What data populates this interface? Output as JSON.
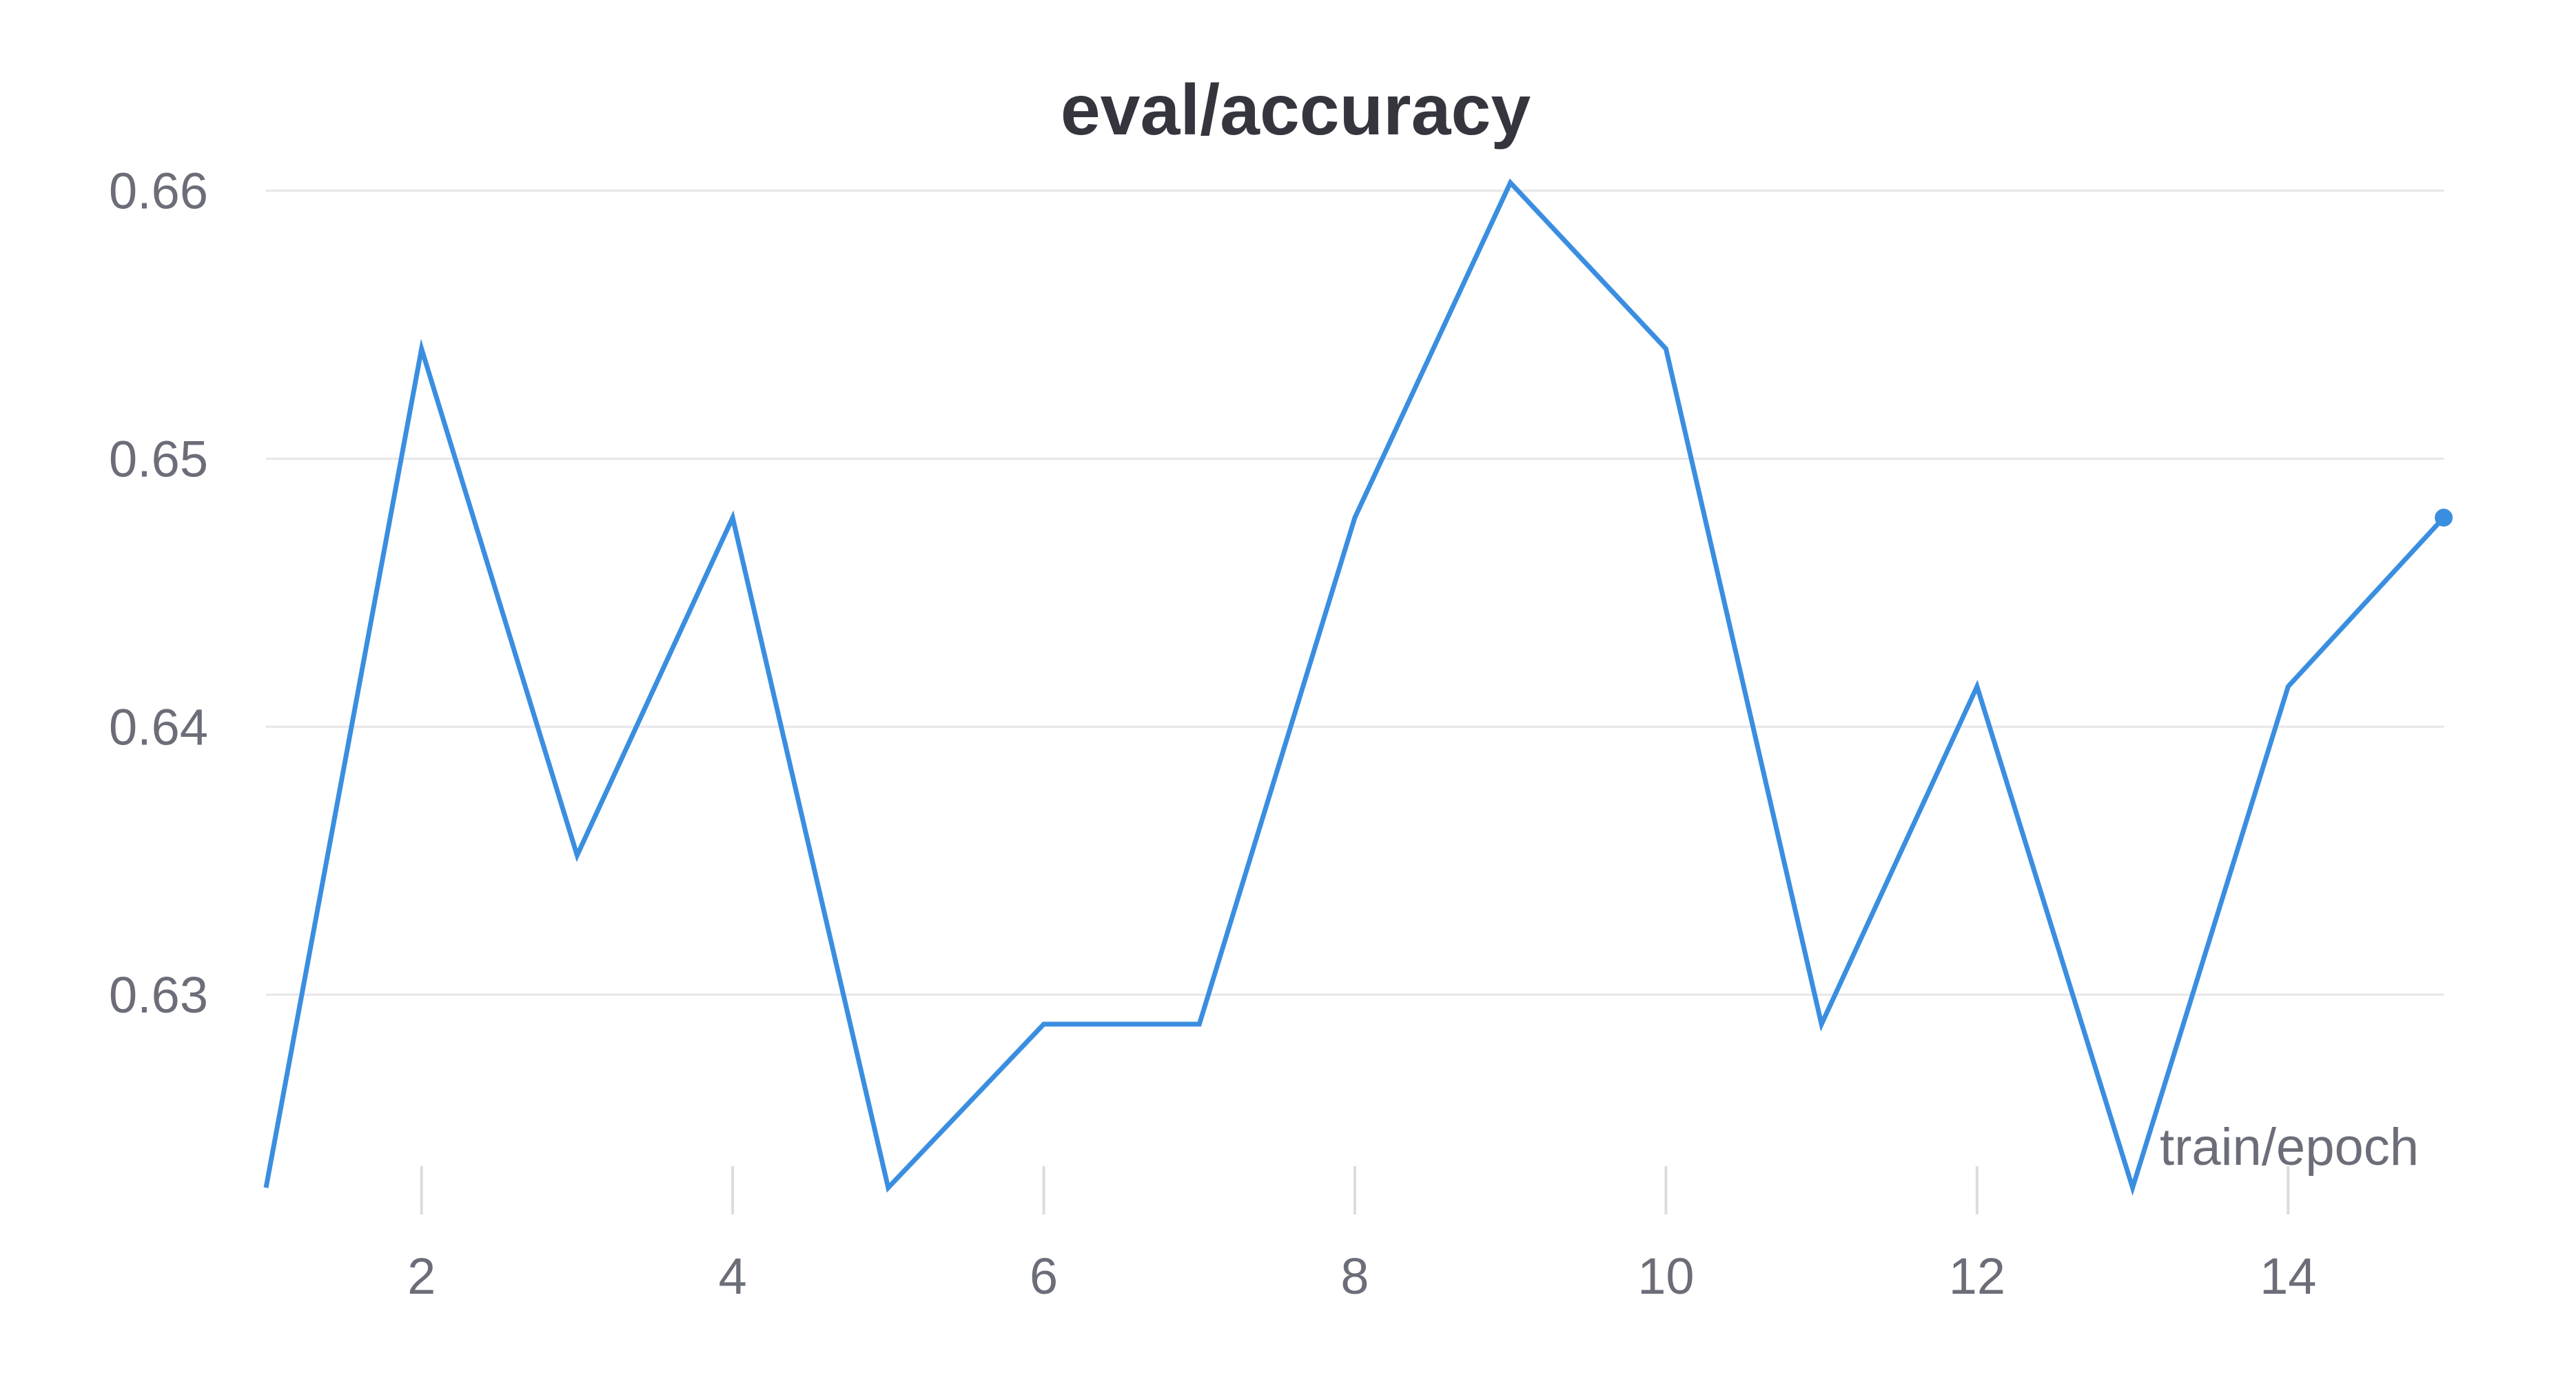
{
  "chart_data": {
    "type": "line",
    "title": "eval/accuracy",
    "xlabel": "train/epoch",
    "ylabel": "",
    "xlim": [
      1,
      15
    ],
    "ylim": [
      0.6227,
      0.6603
    ],
    "x_ticks": [
      2,
      4,
      6,
      8,
      10,
      12,
      14
    ],
    "y_ticks": [
      0.63,
      0.64,
      0.65,
      0.66
    ],
    "y_tick_labels": [
      "0.63",
      "0.64",
      "0.65",
      "0.66"
    ],
    "grid": "horizontal",
    "legend": "none",
    "series": [
      {
        "color": "#3a8ee0",
        "x": [
          1,
          2,
          3,
          4,
          5,
          6,
          7,
          8,
          9,
          10,
          11,
          12,
          13,
          14,
          15
        ],
        "values": [
          0.6228,
          0.6541,
          0.6352,
          0.6478,
          0.6228,
          0.6289,
          0.6289,
          0.6478,
          0.6603,
          0.6541,
          0.6289,
          0.6415,
          0.6228,
          0.6415,
          0.6478
        ]
      }
    ],
    "colors": {
      "line": "#3a8ee0",
      "grid": "#e6e6e9",
      "tick_mark": "#dcdcdf",
      "title": "#35363d",
      "tick_label": "#6b6d78"
    }
  }
}
